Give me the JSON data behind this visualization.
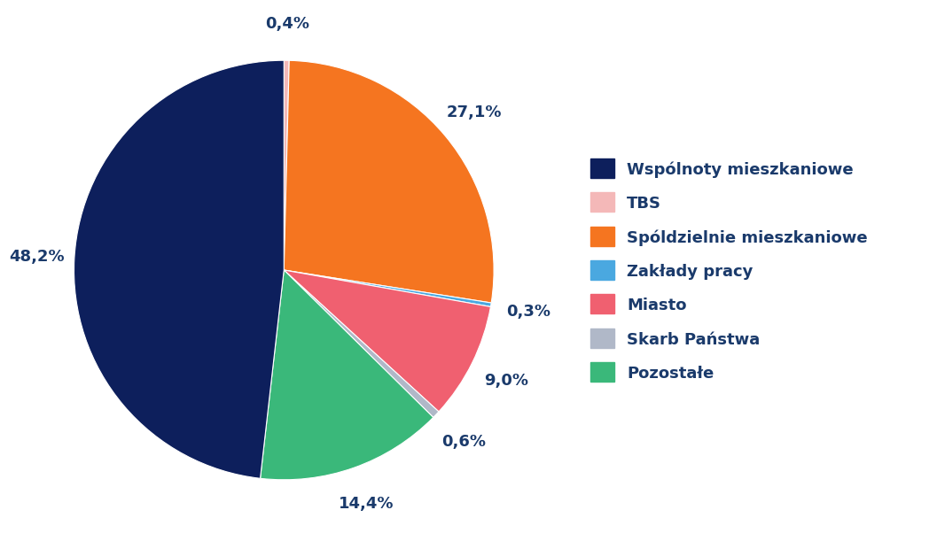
{
  "labels": [
    "Wspólnoty mieszkaniowe",
    "TBS",
    "Spóldzielnie mieszkaniowe",
    "Zakłady pracy",
    "Miasto",
    "Skarb Państwa",
    "Pozostałe"
  ],
  "values": [
    48.2,
    0.4,
    27.1,
    0.3,
    9.0,
    0.6,
    14.4
  ],
  "colors": [
    "#0d1f5c",
    "#f4b8b8",
    "#f57520",
    "#4aa8e0",
    "#f06070",
    "#b0b8c8",
    "#3ab87a"
  ],
  "label_color": "#1a3a6b",
  "label_fontsize": 13,
  "legend_fontsize": 13,
  "pct_labels": [
    "48,2%",
    "0,4%",
    "27,1%",
    "0,3%",
    "9,0%",
    "0,6%",
    "14,4%"
  ],
  "background_color": "#ffffff",
  "order": [
    1,
    2,
    3,
    4,
    5,
    6,
    0
  ]
}
